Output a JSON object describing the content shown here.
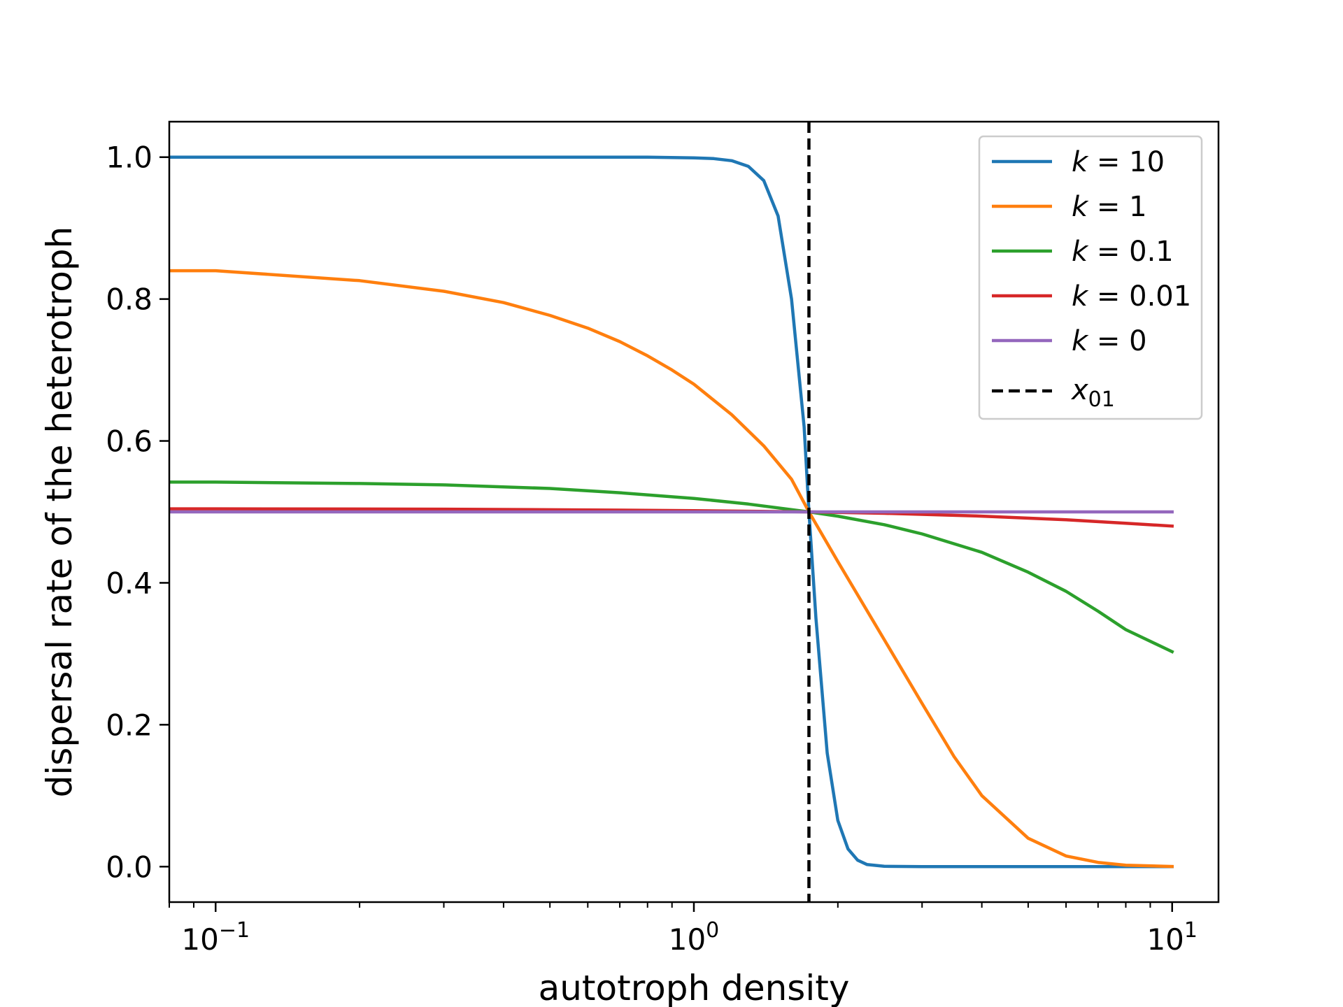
{
  "chart_data": {
    "type": "line",
    "xscale": "log",
    "xlabel": "autotroph density",
    "ylabel": "dispersal rate of the heterotroph",
    "xlim": [
      0.08,
      12.5
    ],
    "ylim": [
      -0.05,
      1.05
    ],
    "x_ticks": [
      {
        "value": 0.1,
        "base": "10",
        "exp": "−1"
      },
      {
        "value": 1,
        "base": "10",
        "exp": "0"
      },
      {
        "value": 10,
        "base": "10",
        "exp": "1"
      }
    ],
    "y_ticks": [
      {
        "value": 0.0,
        "label": "0.0"
      },
      {
        "value": 0.2,
        "label": "0.2"
      },
      {
        "value": 0.4,
        "label": "0.4"
      },
      {
        "value": 0.6,
        "label": "0.6"
      },
      {
        "value": 0.8,
        "label": "0.8"
      },
      {
        "value": 1.0,
        "label": "1.0"
      }
    ],
    "grid": false,
    "legend_position": "top-right",
    "vline": {
      "x": 1.74,
      "label": "x",
      "label_sub": "01",
      "color": "#000000",
      "style": "dashed"
    },
    "series": [
      {
        "name": "k = 10",
        "k_value": "10",
        "color": "#1f77b4",
        "points": [
          [
            0.08,
            1.0
          ],
          [
            0.1,
            1.0
          ],
          [
            0.2,
            1.0
          ],
          [
            0.5,
            1.0
          ],
          [
            0.8,
            1.0
          ],
          [
            1.0,
            0.999
          ],
          [
            1.1,
            0.998
          ],
          [
            1.2,
            0.995
          ],
          [
            1.3,
            0.987
          ],
          [
            1.4,
            0.967
          ],
          [
            1.5,
            0.917
          ],
          [
            1.6,
            0.8
          ],
          [
            1.7,
            0.62
          ],
          [
            1.74,
            0.5
          ],
          [
            1.8,
            0.35
          ],
          [
            1.9,
            0.16
          ],
          [
            2.0,
            0.065
          ],
          [
            2.1,
            0.025
          ],
          [
            2.2,
            0.009
          ],
          [
            2.3,
            0.003
          ],
          [
            2.5,
            0.0005
          ],
          [
            3.0,
            0.0
          ],
          [
            5.0,
            0.0
          ],
          [
            10.0,
            0.0
          ]
        ]
      },
      {
        "name": "k = 1",
        "k_value": "1",
        "color": "#ff7f0e",
        "points": [
          [
            0.08,
            0.84
          ],
          [
            0.1,
            0.84
          ],
          [
            0.2,
            0.826
          ],
          [
            0.3,
            0.811
          ],
          [
            0.4,
            0.795
          ],
          [
            0.5,
            0.777
          ],
          [
            0.6,
            0.759
          ],
          [
            0.7,
            0.74
          ],
          [
            0.8,
            0.72
          ],
          [
            0.9,
            0.7
          ],
          [
            1.0,
            0.68
          ],
          [
            1.2,
            0.637
          ],
          [
            1.4,
            0.593
          ],
          [
            1.6,
            0.546
          ],
          [
            1.74,
            0.5
          ],
          [
            2.0,
            0.43
          ],
          [
            2.5,
            0.32
          ],
          [
            3.0,
            0.23
          ],
          [
            3.5,
            0.155
          ],
          [
            4.0,
            0.1
          ],
          [
            5.0,
            0.04
          ],
          [
            6.0,
            0.015
          ],
          [
            7.0,
            0.006
          ],
          [
            8.0,
            0.002
          ],
          [
            10.0,
            0.0002
          ]
        ]
      },
      {
        "name": "k = 0.1",
        "k_value": "0.1",
        "color": "#2ca02c",
        "points": [
          [
            0.08,
            0.542
          ],
          [
            0.1,
            0.542
          ],
          [
            0.2,
            0.54
          ],
          [
            0.3,
            0.538
          ],
          [
            0.5,
            0.533
          ],
          [
            0.7,
            0.527
          ],
          [
            1.0,
            0.519
          ],
          [
            1.3,
            0.511
          ],
          [
            1.74,
            0.5
          ],
          [
            2.0,
            0.494
          ],
          [
            2.5,
            0.482
          ],
          [
            3.0,
            0.469
          ],
          [
            4.0,
            0.443
          ],
          [
            5.0,
            0.415
          ],
          [
            6.0,
            0.388
          ],
          [
            7.0,
            0.36
          ],
          [
            8.0,
            0.334
          ],
          [
            10.0,
            0.303
          ]
        ]
      },
      {
        "name": "k = 0.01",
        "k_value": "0.01",
        "color": "#d62728",
        "points": [
          [
            0.08,
            0.5043
          ],
          [
            0.1,
            0.5043
          ],
          [
            0.3,
            0.5038
          ],
          [
            0.6,
            0.5028
          ],
          [
            1.0,
            0.5017
          ],
          [
            1.74,
            0.5
          ],
          [
            2.5,
            0.498
          ],
          [
            4.0,
            0.494
          ],
          [
            6.0,
            0.489
          ],
          [
            8.0,
            0.484
          ],
          [
            10.0,
            0.48
          ]
        ]
      },
      {
        "name": "k = 0",
        "k_value": "0",
        "color": "#9467bd",
        "points": [
          [
            0.08,
            0.5
          ],
          [
            10.0,
            0.5
          ]
        ]
      }
    ]
  }
}
